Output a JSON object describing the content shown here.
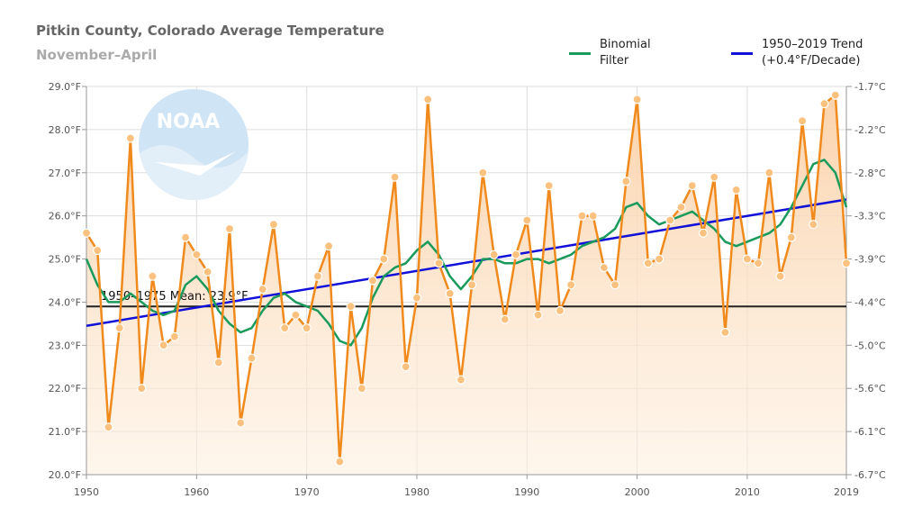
{
  "chart_data": {
    "type": "line",
    "title": "Pitkin County, Colorado Average Temperature",
    "subtitle": "November–April",
    "x_range": [
      1950,
      2019
    ],
    "ylim": [
      20.0,
      29.0
    ],
    "y_ticks": [
      "20.0°F",
      "21.0°F",
      "22.0°F",
      "23.0°F",
      "24.0°F",
      "25.0°F",
      "26.0°F",
      "27.0°F",
      "28.0°F",
      "29.0°F"
    ],
    "y2_ticks": [
      "-6.7°C",
      "-6.1°C",
      "-5.6°C",
      "-5.0°C",
      "-4.4°C",
      "-3.9°C",
      "-3.3°C",
      "-2.8°C",
      "-2.2°C",
      "-1.7°C"
    ],
    "x_ticks": [
      "1950",
      "1960",
      "1970",
      "1980",
      "1990",
      "2000",
      "2010",
      "2019"
    ],
    "x_tick_values": [
      1950,
      1960,
      1970,
      1980,
      1990,
      2000,
      2010,
      2019
    ],
    "logo_text": "NOAA",
    "colors": {
      "temperature": "#f08a1c",
      "binomial": "#1a9a5b",
      "trend": "#1010d8",
      "mean": "#222222",
      "area_top": "#fbd3ac"
    },
    "legend": [
      {
        "name": "binomial",
        "label_line1": "Binomial",
        "label_line2": "Filter"
      },
      {
        "name": "trend",
        "label_line1": "1950–2019 Trend",
        "label_line2": "(+0.4°F/Decade)"
      }
    ],
    "mean": {
      "label": "1950–1975 Mean: 23.9°F",
      "value": 23.9,
      "x_start": 1950,
      "x_end": 2019
    },
    "trend": {
      "start": [
        1950,
        23.45
      ],
      "end": [
        2019,
        26.38
      ]
    },
    "years_start": 1950,
    "temperature": [
      25.6,
      25.2,
      21.1,
      23.4,
      27.8,
      22.0,
      24.6,
      23.0,
      23.2,
      25.5,
      25.1,
      24.7,
      22.6,
      25.7,
      21.2,
      22.7,
      24.3,
      25.8,
      23.4,
      23.7,
      23.4,
      24.6,
      25.3,
      20.3,
      23.9,
      22.0,
      24.5,
      25.0,
      26.9,
      22.5,
      24.1,
      28.7,
      24.9,
      24.2,
      22.2,
      24.4,
      27.0,
      25.1,
      23.6,
      25.1,
      25.9,
      23.7,
      26.7,
      23.8,
      24.4,
      26.0,
      26.0,
      24.8,
      24.4,
      26.8,
      28.7,
      24.9,
      25.0,
      25.9,
      26.2,
      26.7,
      25.6,
      26.9,
      23.3,
      26.6,
      25.0,
      24.9,
      27.0,
      24.6,
      25.5,
      28.2,
      25.8,
      28.6,
      28.8,
      24.9
    ],
    "binomial": [
      25.0,
      24.4,
      24.0,
      24.0,
      24.2,
      24.0,
      23.8,
      23.7,
      23.8,
      24.4,
      24.6,
      24.3,
      23.8,
      23.5,
      23.3,
      23.4,
      23.8,
      24.1,
      24.2,
      24.0,
      23.9,
      23.8,
      23.5,
      23.1,
      23.0,
      23.4,
      24.1,
      24.6,
      24.8,
      24.9,
      25.2,
      25.4,
      25.1,
      24.6,
      24.3,
      24.6,
      25.0,
      25.0,
      24.9,
      24.9,
      25.0,
      25.0,
      24.9,
      25.0,
      25.1,
      25.3,
      25.4,
      25.5,
      25.7,
      26.2,
      26.3,
      26.0,
      25.8,
      25.9,
      26.0,
      26.1,
      25.9,
      25.7,
      25.4,
      25.3,
      25.4,
      25.5,
      25.6,
      25.8,
      26.2,
      26.7,
      27.2,
      27.3,
      27.0,
      26.2
    ]
  }
}
